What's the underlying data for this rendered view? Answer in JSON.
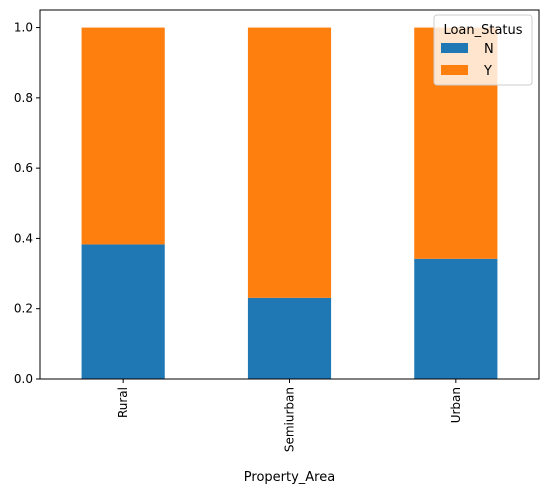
{
  "chart_data": {
    "type": "bar",
    "stacked": true,
    "categories": [
      "Rural",
      "Semiurban",
      "Urban"
    ],
    "series": [
      {
        "name": "N",
        "values": [
          0.383,
          0.231,
          0.342
        ],
        "color": "#1f77b4"
      },
      {
        "name": "Y",
        "values": [
          0.617,
          0.769,
          0.658
        ],
        "color": "#ff7f0e"
      }
    ],
    "xlabel": "Property_Area",
    "ylabel": "",
    "ylim": [
      0,
      1.05
    ],
    "yticks": [
      "0.0",
      "0.2",
      "0.4",
      "0.6",
      "0.8",
      "1.0"
    ],
    "legend": {
      "title": "Loan_Status",
      "placement": "top-right"
    },
    "grid": false
  }
}
